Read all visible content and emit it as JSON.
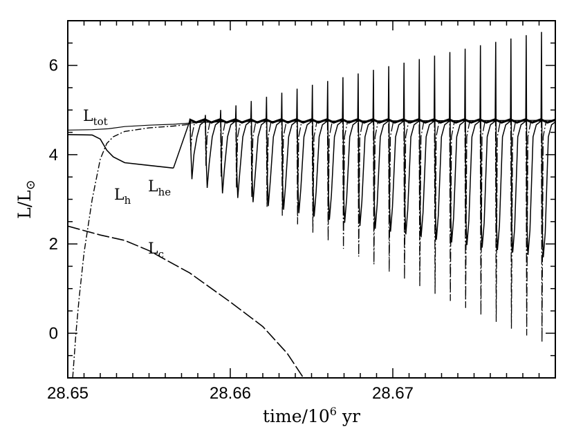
{
  "chart_data": {
    "type": "line",
    "xlabel_main": "time/10",
    "xlabel_sup": "6",
    "xlabel_unit": " yr",
    "ylabel_main": "L/L",
    "ylabel_sub": "⊙",
    "xlim": [
      28.65,
      28.68
    ],
    "ylim": [
      -1,
      7
    ],
    "x_ticks": [
      "28.65",
      "28.66",
      "28.67"
    ],
    "x_tick_values": [
      28.65,
      28.66,
      28.67
    ],
    "y_ticks": [
      "0",
      "2",
      "4",
      "6"
    ],
    "y_tick_values": [
      0,
      2,
      4,
      6
    ],
    "grid": false,
    "series": [
      {
        "name": "Ltot",
        "label_main": "L",
        "label_sub": "tot",
        "style": "thin-solid",
        "points": [
          [
            28.65,
            4.55
          ],
          [
            28.6515,
            4.56
          ],
          [
            28.6525,
            4.58
          ],
          [
            28.6535,
            4.63
          ],
          [
            28.655,
            4.66
          ],
          [
            28.6565,
            4.68
          ],
          [
            28.658,
            4.72
          ],
          [
            28.66,
            4.74
          ],
          [
            28.665,
            4.75
          ],
          [
            28.67,
            4.76
          ],
          [
            28.68,
            4.77
          ]
        ]
      },
      {
        "name": "Lh",
        "label_main": "L",
        "label_sub": "h",
        "style": "dash-dot",
        "points": [
          [
            28.6503,
            -1.0
          ],
          [
            28.6505,
            0.0
          ],
          [
            28.6507,
            0.8
          ],
          [
            28.651,
            1.8
          ],
          [
            28.6515,
            3.0
          ],
          [
            28.652,
            3.9
          ],
          [
            28.6524,
            4.25
          ],
          [
            28.6528,
            4.4
          ],
          [
            28.6535,
            4.52
          ],
          [
            28.655,
            4.6
          ],
          [
            28.6565,
            4.64
          ],
          [
            28.6575,
            4.68
          ]
        ]
      },
      {
        "name": "Lhe",
        "label_main": "L",
        "label_sub": "he",
        "style": "solid",
        "points": [
          [
            28.65,
            4.45
          ],
          [
            28.6515,
            4.44
          ],
          [
            28.652,
            4.35
          ],
          [
            28.6524,
            4.1
          ],
          [
            28.6528,
            3.95
          ],
          [
            28.6535,
            3.82
          ],
          [
            28.655,
            3.76
          ],
          [
            28.6565,
            3.7
          ]
        ]
      },
      {
        "name": "Lc",
        "label_main": "L",
        "label_sub": "c",
        "style": "long-dash",
        "points": [
          [
            28.65,
            2.4
          ],
          [
            28.652,
            2.2
          ],
          [
            28.6535,
            2.08
          ],
          [
            28.655,
            1.85
          ],
          [
            28.6575,
            1.35
          ],
          [
            28.66,
            0.7
          ],
          [
            28.662,
            0.15
          ],
          [
            28.6635,
            -0.45
          ],
          [
            28.6645,
            -1.0
          ]
        ]
      }
    ],
    "pulses": {
      "start": 28.6575,
      "period": 0.00094,
      "count": 24,
      "he_baseline": 4.75,
      "he_min_first": 3.45,
      "he_min_last": 1.7,
      "spike_top_first": 4.75,
      "spike_top_last": 6.75,
      "h_dip_first": 4.1,
      "h_dip_last": -0.2
    }
  }
}
